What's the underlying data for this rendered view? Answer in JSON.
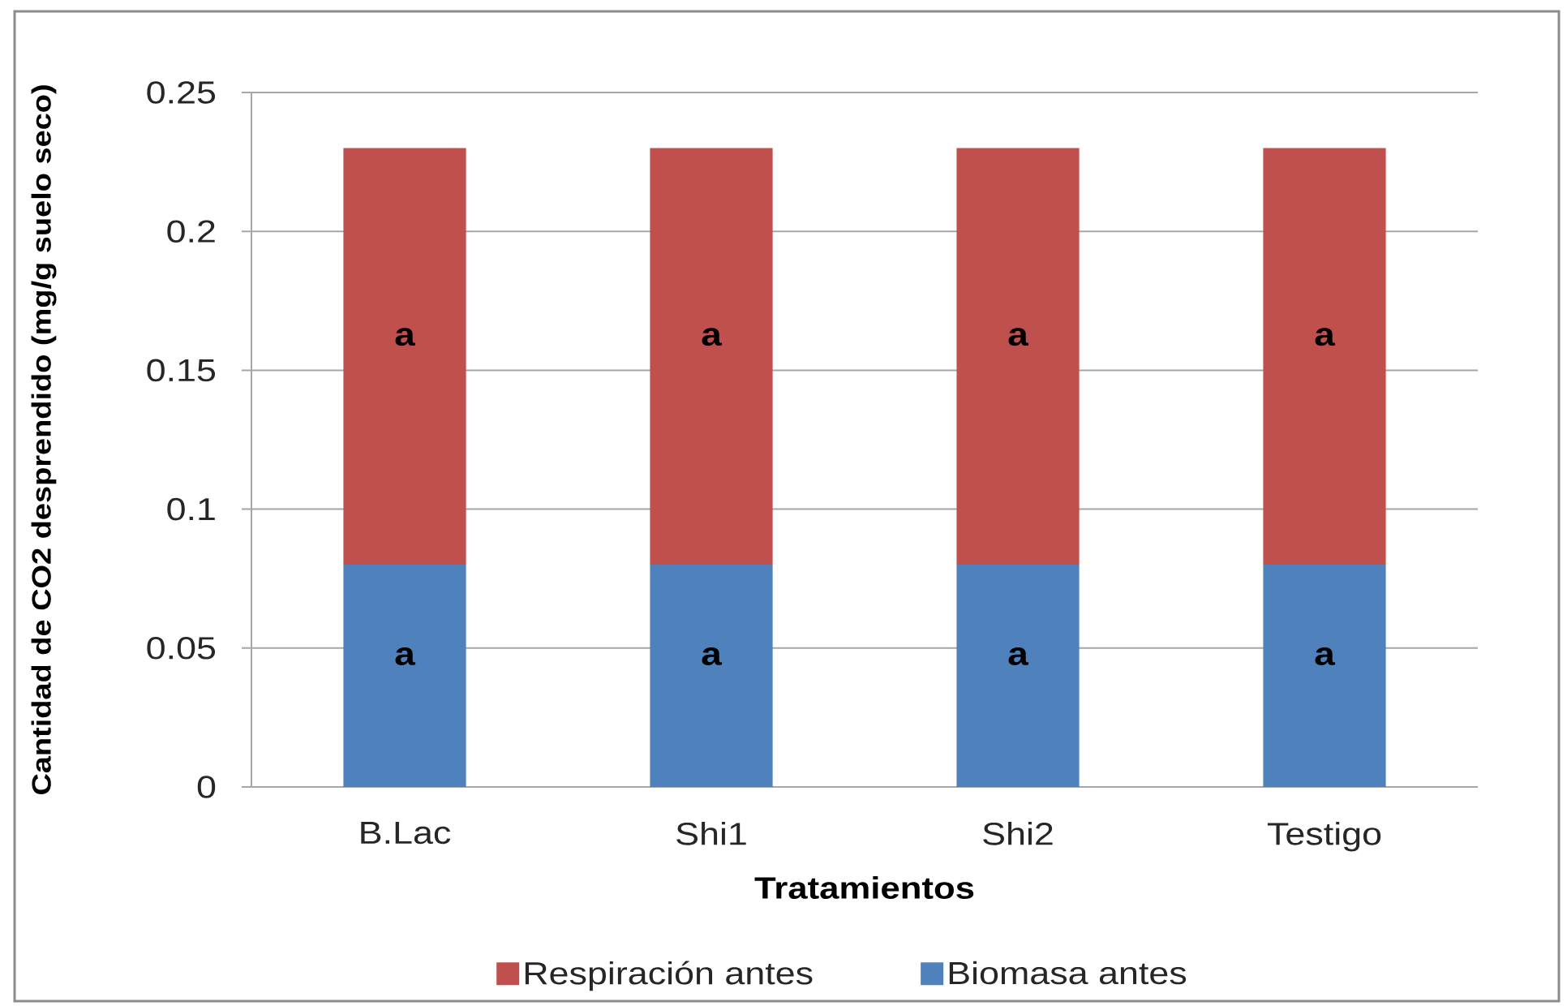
{
  "chart_data": {
    "type": "bar",
    "stacked": true,
    "xlabel": "Tratamientos",
    "ylabel": "Cantidad de CO2 desprendido (mg/g suelo seco)",
    "categories": [
      "B.Lac",
      "Shi1",
      "Shi2",
      "Testigo"
    ],
    "series": [
      {
        "name": "Biomasa antes",
        "color": "#4f81bd",
        "values": [
          0.08,
          0.08,
          0.08,
          0.08
        ],
        "value_labels": [
          "a",
          "a",
          "a",
          "a"
        ]
      },
      {
        "name": "Respiración antes",
        "color": "#c0504d",
        "values": [
          0.15,
          0.15,
          0.15,
          0.15
        ],
        "value_labels": [
          "a",
          "a",
          "a",
          "a"
        ]
      }
    ],
    "ylim": [
      0,
      0.25
    ],
    "yticks": [
      0,
      0.05,
      0.1,
      0.15,
      0.2,
      0.25
    ],
    "grid": "y",
    "legend": "bottom"
  }
}
